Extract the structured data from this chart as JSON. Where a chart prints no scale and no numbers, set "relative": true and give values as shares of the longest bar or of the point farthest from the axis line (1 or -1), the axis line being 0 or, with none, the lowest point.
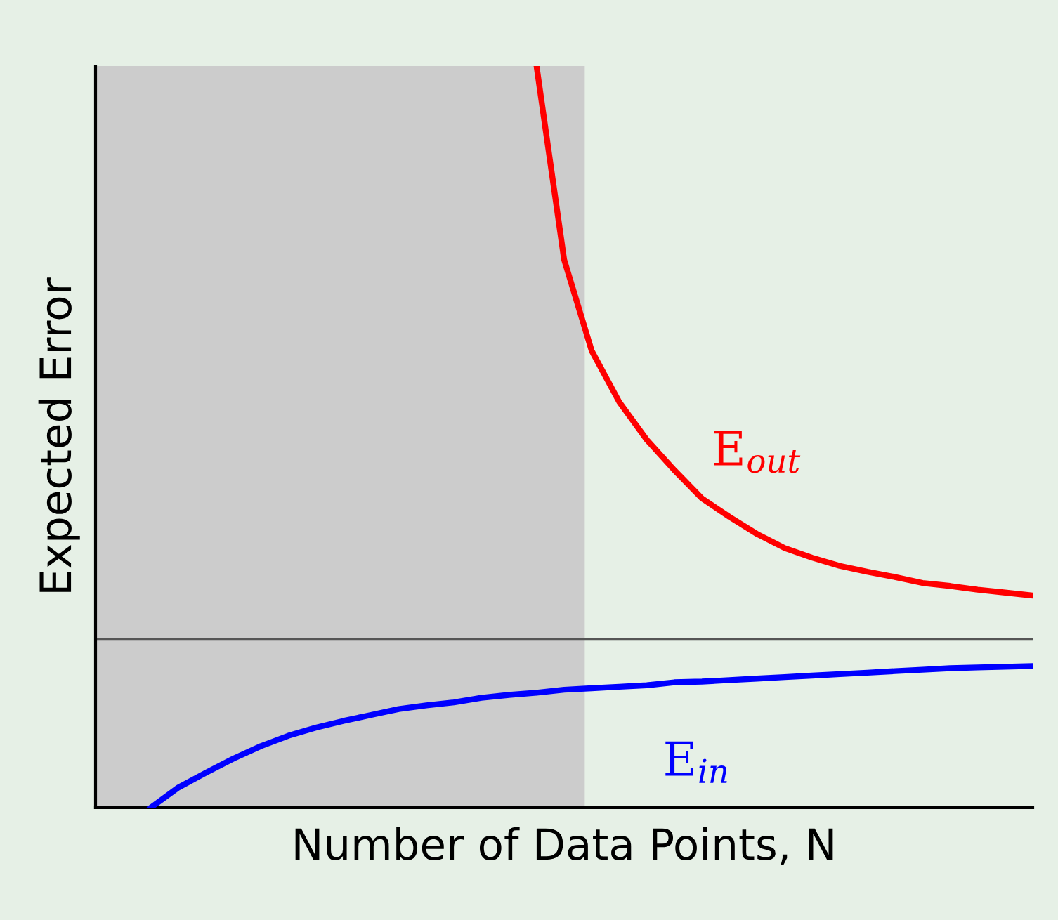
{
  "chart_data": {
    "type": "line",
    "relative": true,
    "xlabel": "Number of Data Points, N",
    "ylabel": "Expected Error",
    "tick_labels": false,
    "legend": false,
    "marker": "none",
    "line_style": "solid",
    "categories": [
      null,
      null,
      null,
      null,
      null,
      null,
      null,
      null,
      null,
      null,
      null,
      null,
      null,
      null,
      null,
      null,
      null,
      null,
      null,
      null,
      null,
      null,
      null,
      null,
      null,
      null,
      null,
      null,
      null,
      null,
      null,
      null,
      null,
      null,
      null
    ],
    "series": [
      {
        "name": "E$_{out}$",
        "color": "#ff0000",
        "values": [
          null,
          null,
          null,
          null,
          null,
          null,
          null,
          null,
          null,
          null,
          null,
          null,
          null,
          null,
          null,
          null,
          1.0,
          0.739,
          0.616,
          0.547,
          0.496,
          0.455,
          0.417,
          0.392,
          0.369,
          0.35,
          0.337,
          0.326,
          0.318,
          0.311,
          0.303,
          0.299,
          0.294,
          0.29,
          0.286
        ]
      },
      {
        "name": "E$_{in}$",
        "color": "#0000ff",
        "values": [
          null,
          null,
          0.0,
          0.027,
          0.047,
          0.066,
          0.083,
          0.097,
          0.108,
          0.117,
          0.125,
          0.133,
          0.138,
          0.142,
          0.148,
          0.152,
          0.155,
          0.159,
          0.161,
          0.163,
          0.165,
          0.169,
          0.17,
          0.172,
          0.174,
          0.176,
          0.178,
          0.18,
          0.182,
          0.184,
          0.186,
          0.188,
          0.189,
          0.19,
          0.191
        ]
      }
    ],
    "ref_lines": [
      {
        "axis": "y",
        "value": 0.227,
        "color": "#555555",
        "line_style": "solid"
      }
    ]
  }
}
